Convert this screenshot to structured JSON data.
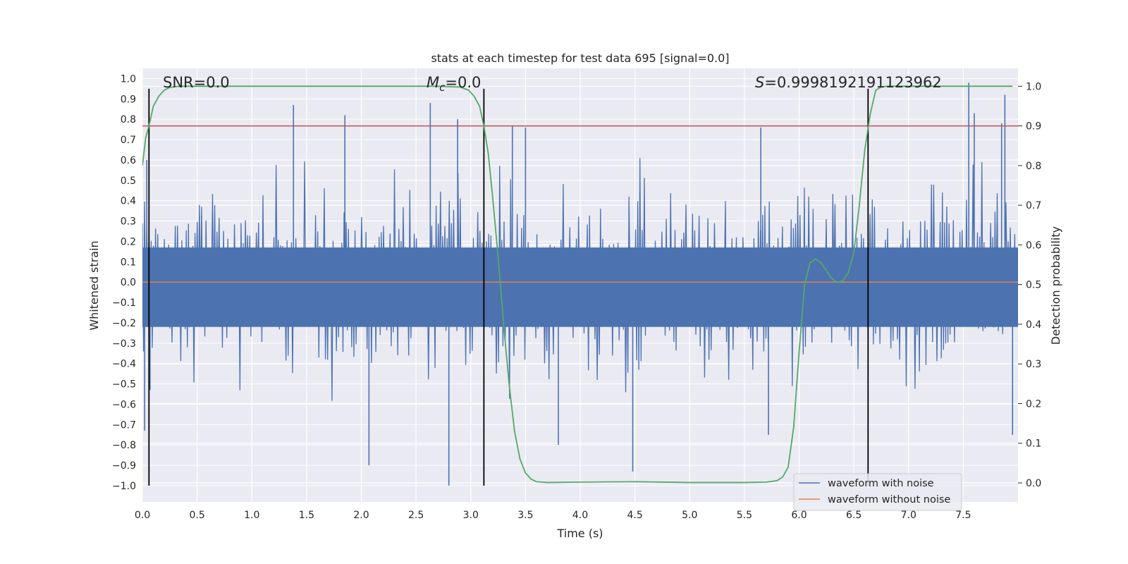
{
  "chart_data": {
    "type": "line",
    "title": "stats at each timestep for test data 695 [signal=0.0]",
    "xlabel": "Time (s)",
    "ylabel_left": "Whitened strain",
    "ylabel_right": "Detection probability",
    "xlim": [
      0.0,
      8.0
    ],
    "ylim_left": [
      -1.08,
      1.05
    ],
    "ylim_right": [
      -0.048,
      1.045
    ],
    "x_ticks": [
      0.0,
      0.5,
      1.0,
      1.5,
      2.0,
      2.5,
      3.0,
      3.5,
      4.0,
      4.5,
      5.0,
      5.5,
      6.0,
      6.5,
      7.0,
      7.5
    ],
    "x_tick_labels": [
      "0.0",
      "0.5",
      "1.0",
      "1.5",
      "2.0",
      "2.5",
      "3.0",
      "3.5",
      "4.0",
      "4.5",
      "5.0",
      "5.5",
      "6.0",
      "6.5",
      "7.0",
      "7.5"
    ],
    "y_left_ticks": [
      1.0,
      0.9,
      0.8,
      0.7,
      0.6,
      0.5,
      0.4,
      0.3,
      0.2,
      0.1,
      0.0,
      -0.1,
      -0.2,
      -0.3,
      -0.4,
      -0.5,
      -0.6,
      -0.7,
      -0.8,
      -0.9,
      -1.0
    ],
    "y_left_tick_labels": [
      "1.0",
      "0.9",
      "0.8",
      "0.7",
      "0.6",
      "0.5",
      "0.4",
      "0.3",
      "0.2",
      "0.1",
      "0.0",
      "−0.1",
      "−0.2",
      "−0.3",
      "−0.4",
      "−0.5",
      "−0.6",
      "−0.7",
      "−0.8",
      "−0.9",
      "−1.0"
    ],
    "y_right_ticks": [
      1.0,
      0.9,
      0.8,
      0.7,
      0.6,
      0.5,
      0.4,
      0.3,
      0.2,
      0.1,
      0.0
    ],
    "y_right_tick_labels": [
      "1.0",
      "0.9",
      "0.8",
      "0.7",
      "0.6",
      "0.5",
      "0.4",
      "0.3",
      "0.2",
      "0.1",
      "0.0"
    ],
    "annotations": {
      "snr_prefix": "SNR=0.0",
      "mc_symbol": "M",
      "mc_subscript": "c",
      "mc_value": "=0.0",
      "s_symbol": "S",
      "s_value": "=0.9998192191123962"
    },
    "vertical_lines_x": [
      0.06,
      3.12,
      6.63
    ],
    "threshold_line": {
      "axis": "right",
      "value": 0.9,
      "color": "#c44e52"
    },
    "noise_series": {
      "name": "waveform with noise",
      "color": "#4c72b0",
      "duration_s": 8.0,
      "samples": 800,
      "baseline_amplitude": 0.33,
      "seed": 695,
      "spikes": [
        {
          "x": 0.02,
          "y": -0.73
        },
        {
          "x": 0.04,
          "y": 0.6
        },
        {
          "x": 0.07,
          "y": -0.53
        },
        {
          "x": 1.38,
          "y": 0.87
        },
        {
          "x": 1.85,
          "y": 0.82
        },
        {
          "x": 2.07,
          "y": -0.9
        },
        {
          "x": 2.63,
          "y": 0.88
        },
        {
          "x": 2.8,
          "y": -1.0
        },
        {
          "x": 2.88,
          "y": 0.8
        },
        {
          "x": 3.38,
          "y": 0.77
        },
        {
          "x": 3.5,
          "y": 0.76
        },
        {
          "x": 3.8,
          "y": -0.8
        },
        {
          "x": 4.48,
          "y": -0.93
        },
        {
          "x": 5.65,
          "y": 0.76
        },
        {
          "x": 5.72,
          "y": -0.75
        },
        {
          "x": 7.55,
          "y": 0.98
        },
        {
          "x": 7.6,
          "y": 0.83
        },
        {
          "x": 7.85,
          "y": 0.78
        },
        {
          "x": 7.88,
          "y": 0.92
        },
        {
          "x": 7.95,
          "y": -0.75
        }
      ]
    },
    "clean_series": {
      "name": "waveform without noise",
      "color": "#dd8452",
      "value": 0.0
    },
    "probability_series": {
      "name": "Detection probability",
      "color": "#55a868",
      "x": [
        0.0,
        0.03,
        0.06,
        0.1,
        0.15,
        0.2,
        0.25,
        0.3,
        0.35,
        0.45,
        0.6,
        1.0,
        2.0,
        2.7,
        2.9,
        2.98,
        3.03,
        3.08,
        3.12,
        3.16,
        3.2,
        3.25,
        3.3,
        3.35,
        3.4,
        3.45,
        3.5,
        3.55,
        3.6,
        3.7,
        4.0,
        4.5,
        5.0,
        5.5,
        5.7,
        5.8,
        5.85,
        5.9,
        5.95,
        6.0,
        6.05,
        6.1,
        6.15,
        6.2,
        6.25,
        6.3,
        6.35,
        6.4,
        6.45,
        6.5,
        6.55,
        6.6,
        6.65,
        6.7,
        6.75,
        6.8,
        6.9,
        7.0,
        7.5,
        7.95
      ],
      "y": [
        0.8,
        0.87,
        0.9,
        0.95,
        0.975,
        0.99,
        0.997,
        0.999,
        1.0,
        1.0,
        1.0,
        1.0,
        1.0,
        1.0,
        0.998,
        0.99,
        0.975,
        0.95,
        0.9,
        0.83,
        0.72,
        0.57,
        0.4,
        0.25,
        0.13,
        0.06,
        0.025,
        0.01,
        0.003,
        0.001,
        0.002,
        0.003,
        0.001,
        0.001,
        0.002,
        0.006,
        0.015,
        0.04,
        0.14,
        0.33,
        0.5,
        0.555,
        0.565,
        0.555,
        0.535,
        0.515,
        0.505,
        0.51,
        0.53,
        0.58,
        0.7,
        0.84,
        0.93,
        0.99,
        0.998,
        1.0,
        1.0,
        1.0,
        1.0,
        1.0
      ]
    },
    "legend": {
      "location": "lower-right",
      "entries": [
        "waveform with noise",
        "waveform without noise"
      ]
    }
  }
}
